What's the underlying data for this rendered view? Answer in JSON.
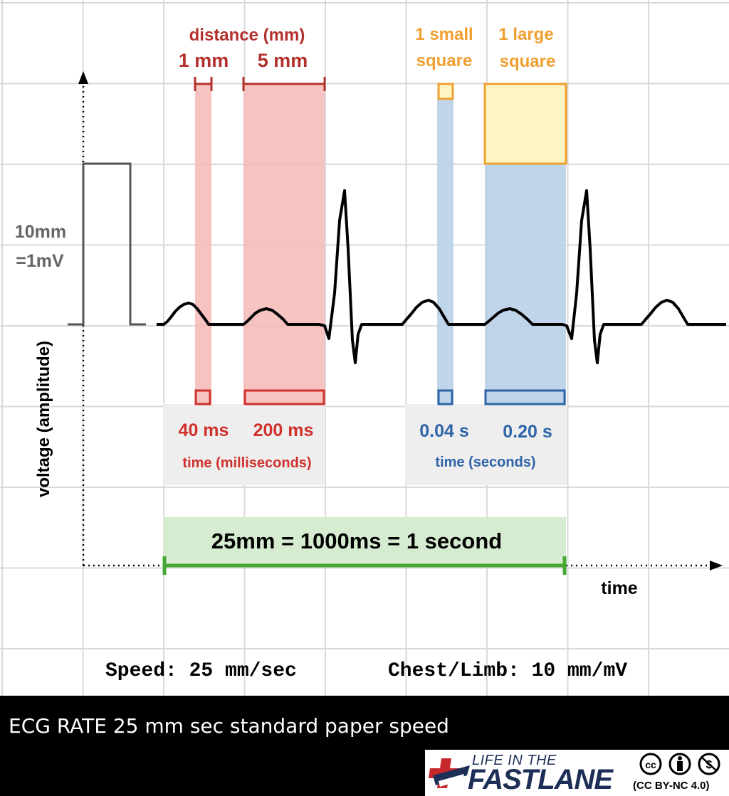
{
  "diagram": {
    "distance": {
      "heading": "distance (mm)",
      "small_label": "1 mm",
      "large_label": "5 mm"
    },
    "squares": {
      "small_line1": "1 small",
      "small_line2": "square",
      "large_line1": "1 large",
      "large_line2": "square"
    },
    "calibration": {
      "line1": "10mm",
      "line2": "=1mV"
    },
    "y_axis_label": "voltage (amplitude)",
    "x_axis_label": "time",
    "time_ms": {
      "small": "40 ms",
      "large": "200 ms",
      "caption": "time (milliseconds)"
    },
    "time_s": {
      "small": "0.04 s",
      "large": "0.20 s",
      "caption": "time (seconds)"
    },
    "conversion": "25mm = 1000ms = 1 second",
    "speed": "Speed: 25 mm/sec",
    "gain": "Chest/Limb: 10 mm/mV"
  },
  "caption": "ECG RATE 25 mm sec standard paper speed",
  "logo": {
    "line1": "LIFE IN THE",
    "line2": "FASTLANE",
    "license": "(CC BY-NC 4.0)"
  },
  "colors": {
    "grid": "#d9d9d9",
    "red": "#d0312d",
    "red_fill": "#f4b8b6",
    "orange": "#f0a030",
    "yellow_fill": "#fff5c2",
    "blue": "#2e64a8",
    "blue_fill": "#b9d0e8",
    "green": "#46a832",
    "green_fill": "#d6ecd0",
    "gray_box": "#eeeeee"
  }
}
